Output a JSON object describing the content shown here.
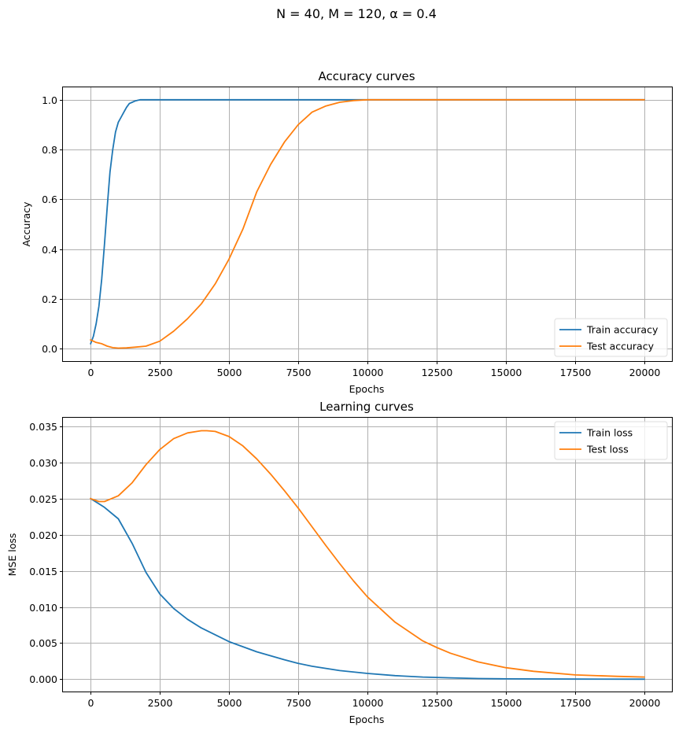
{
  "figure": {
    "suptitle": "N = 40, M = 120, α = 0.4"
  },
  "chart_data": [
    {
      "type": "line",
      "title": "Accuracy curves",
      "xlabel": "Epochs",
      "ylabel": "Accuracy",
      "xlim": [
        -1000,
        21000
      ],
      "ylim": [
        -0.05,
        1.05
      ],
      "xticks": [
        0,
        2500,
        5000,
        7500,
        10000,
        12500,
        15000,
        17500,
        20000
      ],
      "xtick_labels": [
        "0",
        "2500",
        "5000",
        "7500",
        "10000",
        "12500",
        "15000",
        "17500",
        "20000"
      ],
      "yticks": [
        0.0,
        0.2,
        0.4,
        0.6,
        0.8,
        1.0
      ],
      "ytick_labels": [
        "0.0",
        "0.2",
        "0.4",
        "0.6",
        "0.8",
        "1.0"
      ],
      "grid": true,
      "legend_position": "lower-right",
      "series": [
        {
          "name": "Train accuracy",
          "color": "#1f77b4",
          "x": [
            0,
            100,
            200,
            300,
            400,
            500,
            600,
            700,
            800,
            900,
            1000,
            1100,
            1200,
            1300,
            1400,
            1500,
            1600,
            1700,
            1800,
            1900,
            2000,
            3000,
            5000,
            10000,
            15000,
            20000
          ],
          "y": [
            0.02,
            0.05,
            0.1,
            0.17,
            0.28,
            0.42,
            0.57,
            0.71,
            0.8,
            0.87,
            0.91,
            0.93,
            0.95,
            0.97,
            0.985,
            0.99,
            0.995,
            0.998,
            1.0,
            1.0,
            1.0,
            1.0,
            1.0,
            1.0,
            1.0,
            1.0
          ]
        },
        {
          "name": "Test accuracy",
          "color": "#ff7f0e",
          "x": [
            0,
            200,
            400,
            600,
            800,
            1000,
            1300,
            1600,
            2000,
            2500,
            3000,
            3500,
            4000,
            4500,
            5000,
            5500,
            6000,
            6500,
            7000,
            7500,
            8000,
            8500,
            9000,
            9500,
            10000,
            12500,
            15000,
            17500,
            20000
          ],
          "y": [
            0.035,
            0.025,
            0.02,
            0.01,
            0.004,
            0.002,
            0.003,
            0.006,
            0.01,
            0.03,
            0.07,
            0.12,
            0.18,
            0.26,
            0.36,
            0.48,
            0.63,
            0.74,
            0.83,
            0.9,
            0.95,
            0.975,
            0.99,
            0.997,
            1.0,
            1.0,
            1.0,
            1.0,
            1.0
          ]
        }
      ]
    },
    {
      "type": "line",
      "title": "Learning curves",
      "xlabel": "Epochs",
      "ylabel": "MSE loss",
      "xlim": [
        -1000,
        21000
      ],
      "ylim": [
        -0.0017,
        0.0362
      ],
      "xticks": [
        0,
        2500,
        5000,
        7500,
        10000,
        12500,
        15000,
        17500,
        20000
      ],
      "xtick_labels": [
        "0",
        "2500",
        "5000",
        "7500",
        "10000",
        "12500",
        "15000",
        "17500",
        "20000"
      ],
      "yticks": [
        0.0,
        0.005,
        0.01,
        0.015,
        0.02,
        0.025,
        0.03,
        0.035
      ],
      "ytick_labels": [
        "0.000",
        "0.005",
        "0.010",
        "0.015",
        "0.020",
        "0.025",
        "0.030",
        "0.035"
      ],
      "grid": true,
      "legend_position": "upper-right",
      "series": [
        {
          "name": "Train loss",
          "color": "#1f77b4",
          "x": [
            0,
            500,
            1000,
            1500,
            2000,
            2500,
            3000,
            3500,
            4000,
            5000,
            6000,
            7000,
            7500,
            8000,
            9000,
            10000,
            11000,
            12000,
            12500,
            13000,
            14000,
            15000,
            17500,
            20000
          ],
          "y": [
            0.025,
            0.0238,
            0.0222,
            0.0188,
            0.0148,
            0.0118,
            0.0098,
            0.0083,
            0.0071,
            0.0052,
            0.0038,
            0.0027,
            0.0022,
            0.0018,
            0.0012,
            0.0008,
            0.0005,
            0.0003,
            0.00025,
            0.0002,
            0.0001,
            5e-05,
            2e-05,
            1e-05
          ]
        },
        {
          "name": "Test loss",
          "color": "#ff7f0e",
          "x": [
            0,
            300,
            500,
            1000,
            1500,
            2000,
            2500,
            3000,
            3500,
            4000,
            4200,
            4500,
            5000,
            5500,
            6000,
            6500,
            7000,
            7500,
            8000,
            8500,
            9000,
            9500,
            10000,
            11000,
            12000,
            12500,
            13000,
            14000,
            15000,
            16000,
            17500,
            19000,
            20000
          ],
          "y": [
            0.025,
            0.0246,
            0.0246,
            0.0254,
            0.0272,
            0.0297,
            0.0318,
            0.0333,
            0.0341,
            0.0344,
            0.0344,
            0.0343,
            0.0336,
            0.0323,
            0.0305,
            0.0284,
            0.0261,
            0.0237,
            0.0211,
            0.0185,
            0.016,
            0.0136,
            0.0114,
            0.0079,
            0.0053,
            0.0044,
            0.0036,
            0.0024,
            0.0016,
            0.0011,
            0.0006,
            0.0004,
            0.0003
          ]
        }
      ]
    }
  ]
}
